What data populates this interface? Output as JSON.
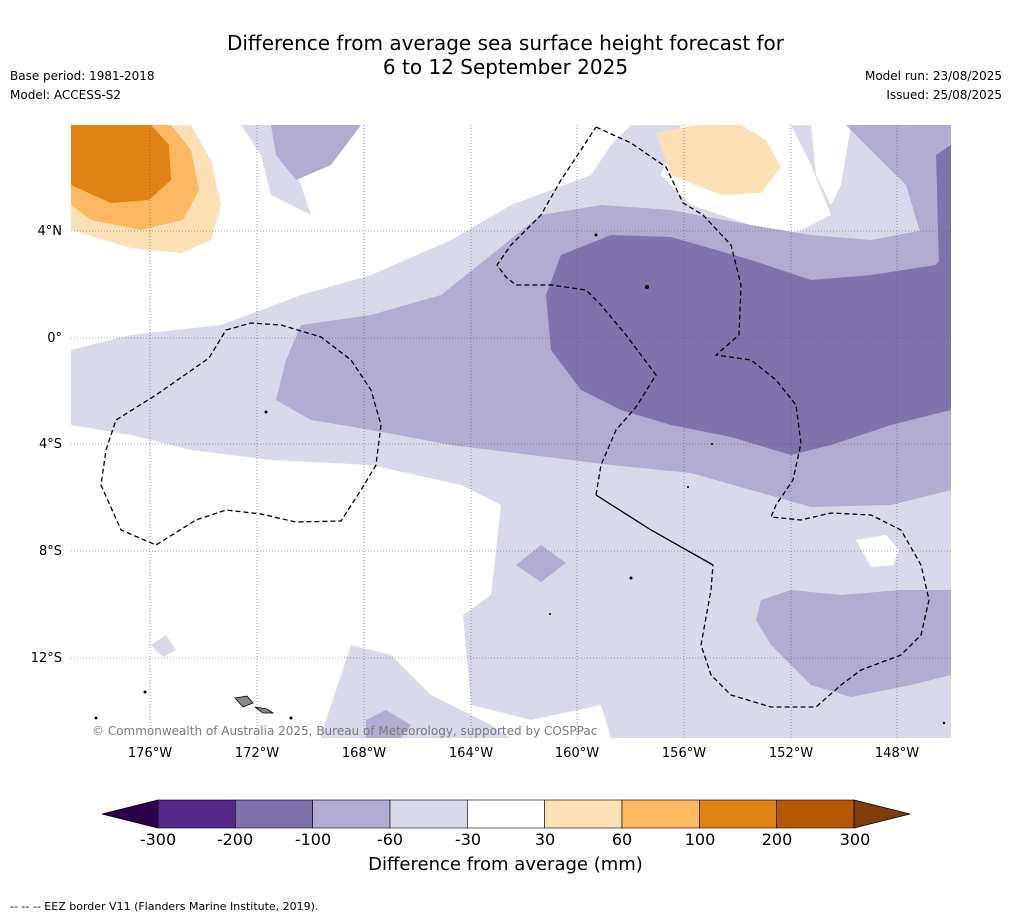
{
  "header": {
    "title_line1": "Difference from average sea surface height forecast for",
    "title_line2": "6 to 12 September 2025",
    "base_period": "Base period: 1981-2018",
    "model": "Model: ACCESS-S2",
    "model_run": "Model run: 23/08/2025",
    "issued": "Issued: 25/08/2025"
  },
  "map": {
    "lat_labels": [
      "4°N",
      "0°",
      "4°S",
      "8°S",
      "12°S"
    ],
    "lon_labels": [
      "176°W",
      "172°W",
      "168°W",
      "164°W",
      "160°W",
      "156°W",
      "152°W",
      "148°W"
    ],
    "copyright": "© Commonwealth of Australia 2025, Bureau of Meteorology, supported by COSPPac",
    "legend_items": [
      "EEZ border"
    ]
  },
  "colorbar": {
    "label": "Difference from average (mm)",
    "ticks": [
      "-300",
      "-200",
      "-100",
      "-60",
      "-30",
      "30",
      "60",
      "100",
      "200",
      "300"
    ],
    "colors": [
      "#2d004b",
      "#542788",
      "#8073ac",
      "#b2abd2",
      "#d8daeb",
      "#ffffff",
      "#fee0b6",
      "#fdb863",
      "#e08214",
      "#b35806",
      "#7f3b08"
    ]
  },
  "footnote": "--  --  -- EEZ border V11 (Flanders Marine Institute, 2019)."
}
